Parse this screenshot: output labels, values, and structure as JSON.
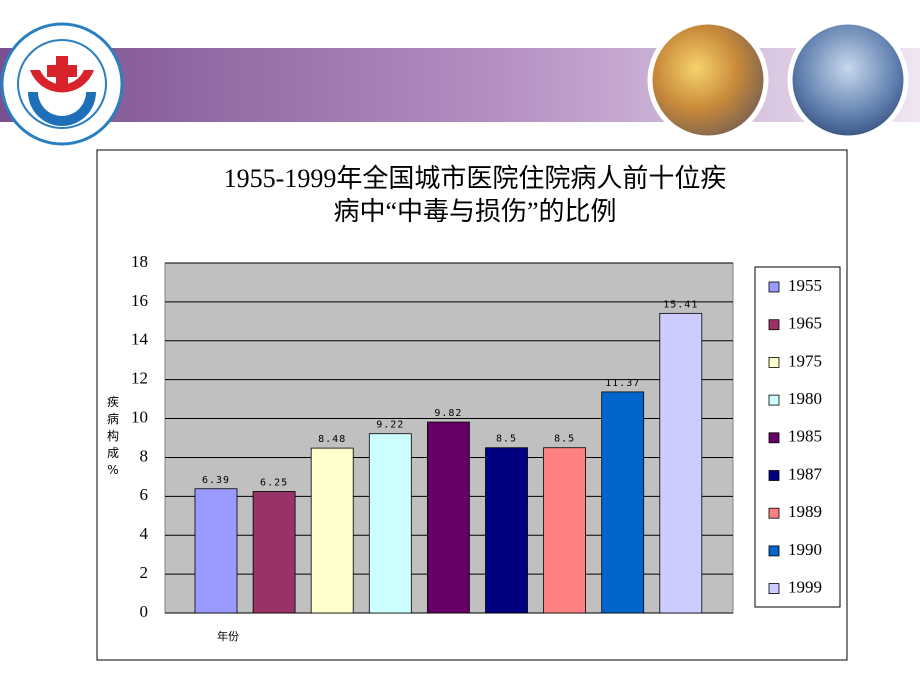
{
  "chart_data": {
    "type": "bar",
    "title": [
      "1955-1999年全国城市医院住院病人前十位疾",
      "病中“中毒与损伤”的比例"
    ],
    "y_label": "疾病构成%",
    "x_label": "年份",
    "categories": [
      null
    ],
    "series": [
      {
        "name": "1955",
        "color": "#9999FF",
        "values": [
          6.39
        ]
      },
      {
        "name": "1965",
        "color": "#993366",
        "values": [
          6.25
        ]
      },
      {
        "name": "1975",
        "color": "#FFFFCC",
        "values": [
          8.48
        ]
      },
      {
        "name": "1980",
        "color": "#CCFFFF",
        "values": [
          9.22
        ]
      },
      {
        "name": "1985",
        "color": "#660066",
        "values": [
          9.82
        ]
      },
      {
        "name": "1987",
        "color": "#000080",
        "values": [
          8.5
        ]
      },
      {
        "name": "1989",
        "color": "#FF8080",
        "values": [
          8.5
        ]
      },
      {
        "name": "1990",
        "color": "#0066CC",
        "values": [
          11.37
        ]
      },
      {
        "name": "1999",
        "color": "#CCCCFF",
        "values": [
          15.41
        ]
      }
    ],
    "ylim": [
      0,
      18
    ],
    "yticks": [
      0,
      2,
      4,
      6,
      8,
      10,
      12,
      14,
      16,
      18
    ],
    "grid": true,
    "legend": "right",
    "plot_background": "#C0C0C0"
  }
}
